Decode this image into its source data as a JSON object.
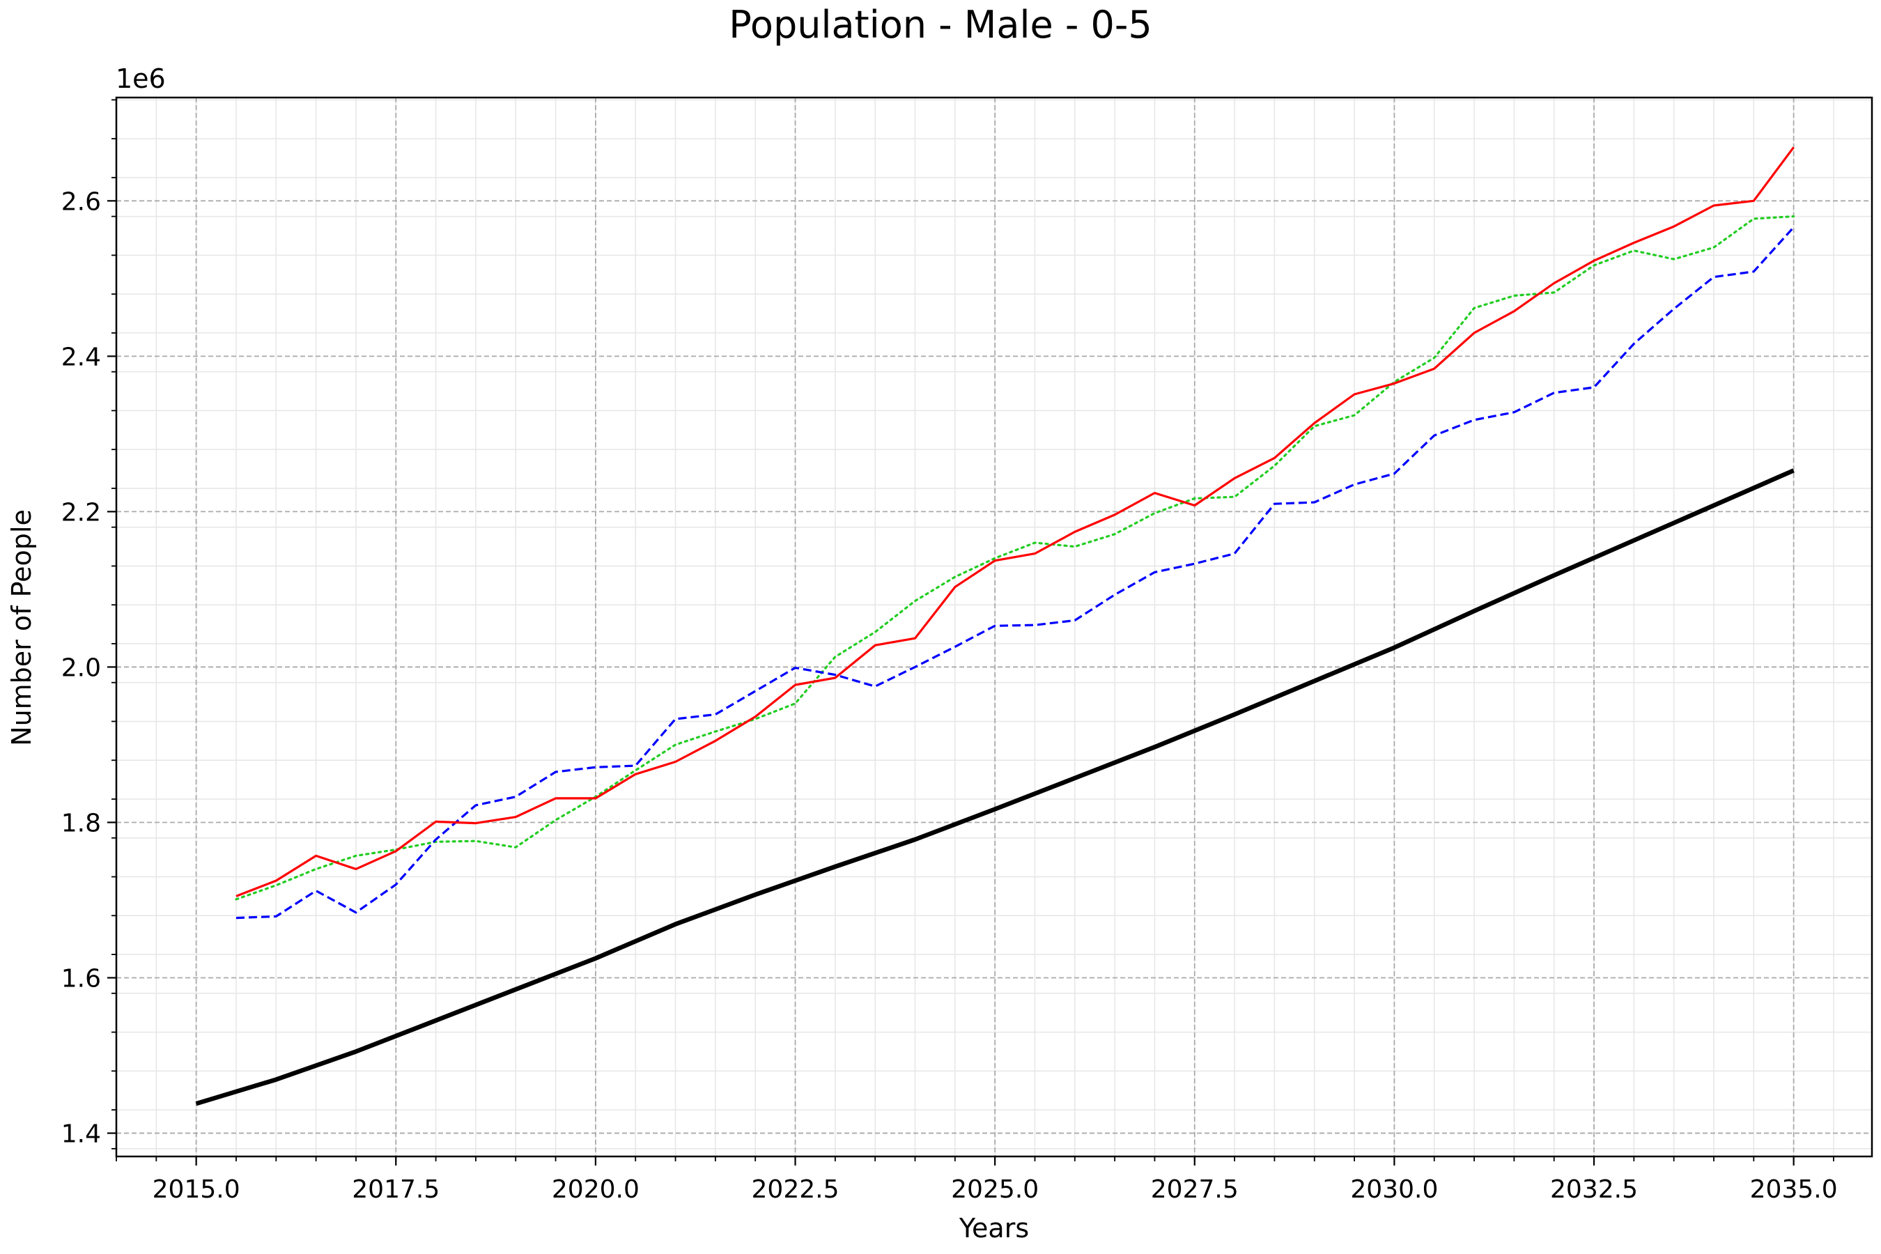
{
  "chart_data": {
    "type": "line",
    "title": "Population - Male - 0-5",
    "xlabel": "Years",
    "ylabel": "Number of People",
    "y_offset_text": "1e6",
    "y_scale": 1000000,
    "xlim": [
      2014.0,
      2035.98
    ],
    "ylim": [
      1.37,
      2.733
    ],
    "x_ticks": [
      2015.0,
      2017.5,
      2020.0,
      2022.5,
      2025.0,
      2027.5,
      2030.0,
      2032.5,
      2035.0
    ],
    "x_tick_labels": [
      "2015.0",
      "2017.5",
      "2020.0",
      "2022.5",
      "2025.0",
      "2027.5",
      "2030.0",
      "2032.5",
      "2035.0"
    ],
    "y_ticks": [
      1.4,
      1.6,
      1.8,
      2.0,
      2.2,
      2.4,
      2.6
    ],
    "y_tick_labels": [
      "1.4",
      "1.6",
      "1.8",
      "2.0",
      "2.2",
      "2.4",
      "2.6"
    ],
    "grid": true,
    "colors": {
      "black": "#000000",
      "red": "#ff0000",
      "blue": "#0000ff",
      "green": "#22cc22",
      "grid_major": "#aaaaaa",
      "grid_minor": "#e6e6e6"
    },
    "series": [
      {
        "style": "solid-thick",
        "color": "#000000",
        "x": [
          2015.0,
          2016.0,
          2017.0,
          2018.0,
          2019.0,
          2020.0,
          2021.0,
          2022.0,
          2023.0,
          2024.0,
          2025.0,
          2026.0,
          2027.0,
          2028.0,
          2029.0,
          2030.0,
          2031.0,
          2032.0,
          2033.0,
          2034.0,
          2035.0
        ],
        "values": [
          1.438,
          1.469,
          1.505,
          1.545,
          1.585,
          1.625,
          1.669,
          1.707,
          1.743,
          1.778,
          1.817,
          1.857,
          1.897,
          1.939,
          1.982,
          2.025,
          2.072,
          2.118,
          2.163,
          2.208,
          2.253
        ]
      },
      {
        "style": "solid",
        "color": "#ff0000",
        "x": [
          2015.5,
          2016.0,
          2016.5,
          2017.0,
          2017.5,
          2018.0,
          2018.5,
          2019.0,
          2019.5,
          2020.0,
          2020.5,
          2021.0,
          2021.5,
          2022.0,
          2022.5,
          2023.0,
          2023.5,
          2024.0,
          2024.5,
          2025.0,
          2025.5,
          2026.0,
          2026.5,
          2027.0,
          2027.5,
          2028.0,
          2028.5,
          2029.0,
          2029.5,
          2030.0,
          2030.5,
          2031.0,
          2031.5,
          2032.0,
          2032.5,
          2033.0,
          2033.5,
          2034.0,
          2034.5,
          2035.0
        ],
        "values": [
          1.705,
          1.725,
          1.757,
          1.74,
          1.763,
          1.801,
          1.799,
          1.807,
          1.831,
          1.831,
          1.862,
          1.878,
          1.905,
          1.936,
          1.977,
          1.986,
          2.028,
          2.037,
          2.103,
          2.137,
          2.146,
          2.174,
          2.196,
          2.224,
          2.208,
          2.243,
          2.269,
          2.314,
          2.351,
          2.365,
          2.384,
          2.43,
          2.458,
          2.494,
          2.523,
          2.546,
          2.567,
          2.594,
          2.6,
          2.669
        ]
      },
      {
        "style": "dashed",
        "color": "#0000ff",
        "x": [
          2015.5,
          2016.0,
          2016.5,
          2017.0,
          2017.5,
          2018.0,
          2018.5,
          2019.0,
          2019.5,
          2020.0,
          2020.5,
          2021.0,
          2021.5,
          2022.0,
          2022.5,
          2023.0,
          2023.5,
          2024.0,
          2024.5,
          2025.0,
          2025.5,
          2026.0,
          2026.5,
          2027.0,
          2027.5,
          2028.0,
          2028.5,
          2029.0,
          2029.5,
          2030.0,
          2030.5,
          2031.0,
          2031.5,
          2032.0,
          2032.5,
          2033.0,
          2033.5,
          2034.0,
          2034.5,
          2035.0
        ],
        "values": [
          1.677,
          1.679,
          1.712,
          1.684,
          1.72,
          1.778,
          1.822,
          1.833,
          1.865,
          1.871,
          1.873,
          1.933,
          1.939,
          1.969,
          1.999,
          1.99,
          1.975,
          2.0,
          2.026,
          2.053,
          2.054,
          2.06,
          2.093,
          2.122,
          2.133,
          2.146,
          2.21,
          2.212,
          2.235,
          2.249,
          2.298,
          2.318,
          2.328,
          2.353,
          2.36,
          2.416,
          2.461,
          2.502,
          2.509,
          2.566
        ]
      },
      {
        "style": "dotted",
        "color": "#22cc22",
        "x": [
          2015.5,
          2016.0,
          2016.5,
          2017.0,
          2017.5,
          2018.0,
          2018.5,
          2019.0,
          2019.5,
          2020.0,
          2020.5,
          2021.0,
          2021.5,
          2022.0,
          2022.5,
          2023.0,
          2023.5,
          2024.0,
          2024.5,
          2025.0,
          2025.5,
          2026.0,
          2026.5,
          2027.0,
          2027.5,
          2028.0,
          2028.5,
          2029.0,
          2029.5,
          2030.0,
          2030.5,
          2031.0,
          2031.5,
          2032.0,
          2032.5,
          2033.0,
          2033.5,
          2034.0,
          2034.5,
          2035.0
        ],
        "values": [
          1.701,
          1.719,
          1.74,
          1.757,
          1.765,
          1.775,
          1.776,
          1.768,
          1.803,
          1.833,
          1.867,
          1.9,
          1.917,
          1.933,
          1.953,
          2.013,
          2.045,
          2.085,
          2.116,
          2.14,
          2.16,
          2.155,
          2.171,
          2.198,
          2.217,
          2.219,
          2.259,
          2.31,
          2.324,
          2.367,
          2.398,
          2.462,
          2.478,
          2.482,
          2.517,
          2.536,
          2.525,
          2.54,
          2.577,
          2.58
        ]
      }
    ]
  }
}
